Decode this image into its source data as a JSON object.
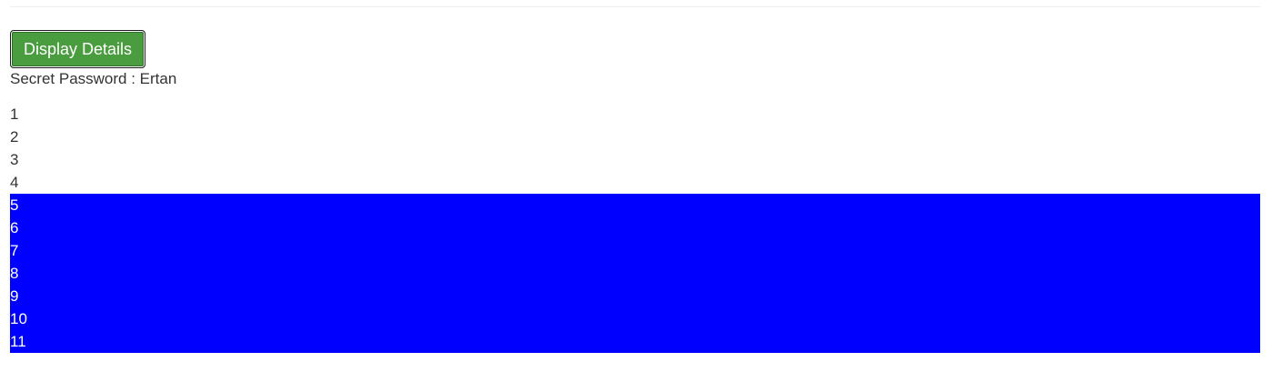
{
  "button": {
    "label": "Display Details"
  },
  "secret": {
    "label": "Secret Password : ",
    "value": "Ertan"
  },
  "list": {
    "items": [
      "1",
      "2",
      "3",
      "4",
      "5",
      "6",
      "7",
      "8",
      "9",
      "10",
      "11"
    ],
    "highlight_from_item": "5",
    "highlight_color": "#0000ff",
    "highlight_text_color": "#ffffff"
  },
  "colors": {
    "button_bg": "#4a9d3f",
    "text": "#333333"
  }
}
